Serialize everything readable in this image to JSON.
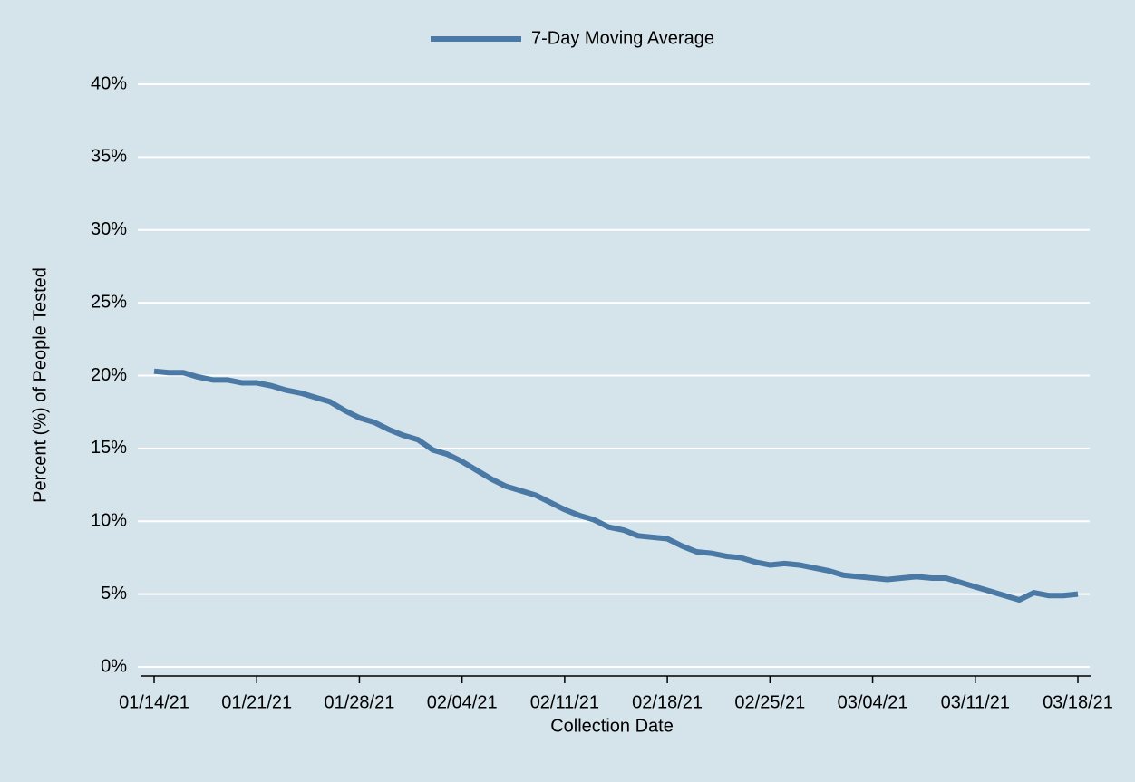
{
  "chart_data": {
    "type": "line",
    "xlabel": "Collection Date",
    "ylabel": "Percent (%) of People Tested",
    "categories": [
      "01/14/21",
      null,
      null,
      null,
      null,
      null,
      null,
      "01/21/21",
      null,
      null,
      null,
      null,
      null,
      null,
      "01/28/21",
      null,
      null,
      null,
      null,
      null,
      null,
      "02/04/21",
      null,
      null,
      null,
      null,
      null,
      null,
      "02/11/21",
      null,
      null,
      null,
      null,
      null,
      null,
      "02/18/21",
      null,
      null,
      null,
      null,
      null,
      null,
      "02/25/21",
      null,
      null,
      null,
      null,
      null,
      null,
      "03/04/21",
      null,
      null,
      null,
      null,
      null,
      null,
      "03/11/21",
      null,
      null,
      null,
      null,
      null,
      null,
      "03/18/21"
    ],
    "series": [
      {
        "name": "7-Day Moving Average",
        "color": "#4a79a5",
        "values": [
          20.3,
          20.2,
          20.2,
          19.9,
          19.7,
          19.7,
          19.5,
          19.5,
          19.3,
          19.0,
          18.8,
          18.5,
          18.2,
          17.6,
          17.1,
          16.8,
          16.3,
          15.9,
          15.6,
          14.9,
          14.6,
          14.1,
          13.5,
          12.9,
          12.4,
          12.1,
          11.8,
          11.3,
          10.8,
          10.4,
          10.1,
          9.6,
          9.4,
          9.0,
          8.9,
          8.8,
          8.3,
          7.9,
          7.8,
          7.6,
          7.5,
          7.2,
          7.0,
          7.1,
          7.0,
          6.8,
          6.6,
          6.3,
          6.2,
          6.1,
          6.0,
          6.1,
          6.2,
          6.1,
          6.1,
          5.8,
          5.5,
          5.2,
          4.9,
          4.6,
          5.1,
          4.9,
          4.9,
          5.0
        ]
      }
    ],
    "ylim": [
      0,
      40
    ],
    "yticks": [
      {
        "value": 0,
        "label": "0%"
      },
      {
        "value": 5,
        "label": "5%"
      },
      {
        "value": 10,
        "label": "10%"
      },
      {
        "value": 15,
        "label": "15%"
      },
      {
        "value": 20,
        "label": "20%"
      },
      {
        "value": 25,
        "label": "25%"
      },
      {
        "value": 30,
        "label": "30%"
      },
      {
        "value": 35,
        "label": "35%"
      },
      {
        "value": 40,
        "label": "40%"
      }
    ],
    "grid": true,
    "legend": "top"
  }
}
